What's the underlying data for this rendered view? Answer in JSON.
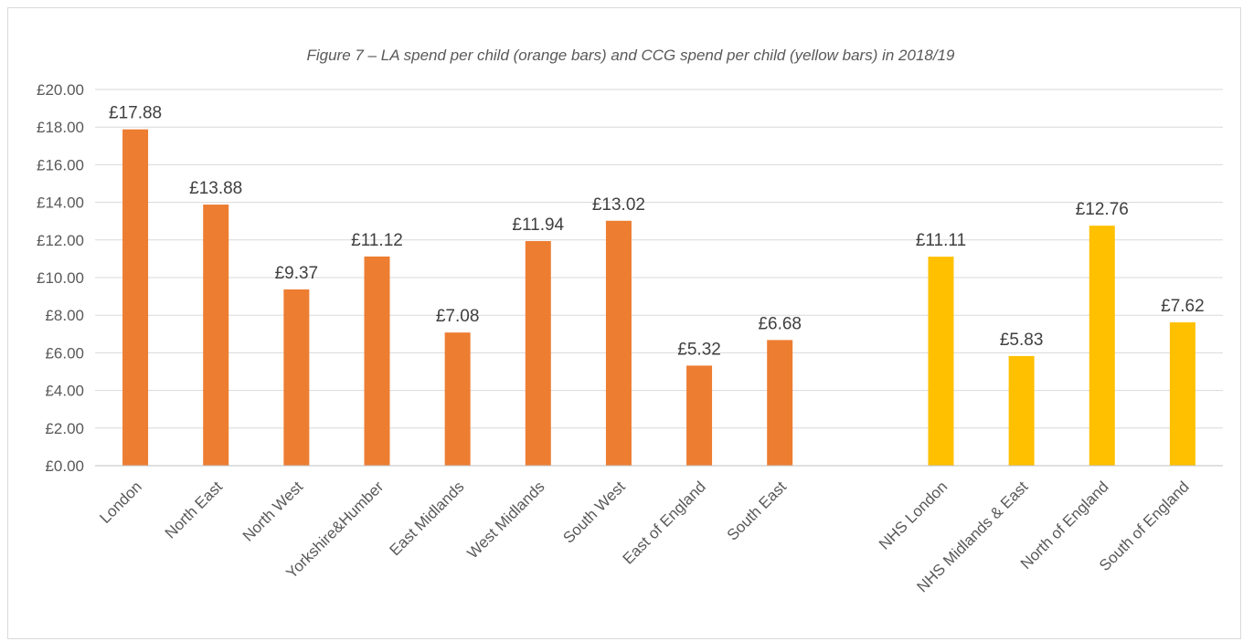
{
  "chart_data": {
    "type": "bar",
    "title": "Figure 7 – LA spend per child (orange bars) and CCG spend per child (yellow bars) in 2018/19",
    "xlabel": "",
    "ylabel": "",
    "ylim": [
      0,
      20
    ],
    "yticks": [
      "£0.00",
      "£2.00",
      "£4.00",
      "£6.00",
      "£8.00",
      "£10.00",
      "£12.00",
      "£14.00",
      "£16.00",
      "£18.00",
      "£20.00"
    ],
    "grid": true,
    "legend": "none",
    "categories": [
      "London",
      "North East",
      "North West",
      "Yorkshire&Humber",
      "East Midlands",
      "West Midlands",
      "South West",
      "East of England",
      "South East",
      "",
      "NHS London",
      "NHS Midlands & East",
      "North of England",
      "South of England"
    ],
    "values": [
      17.88,
      13.88,
      9.37,
      11.12,
      7.08,
      11.94,
      13.02,
      5.32,
      6.68,
      null,
      11.11,
      5.83,
      12.76,
      7.62
    ],
    "data_labels": [
      "£17.88",
      "£13.88",
      "£9.37",
      "£11.12",
      "£7.08",
      "£11.94",
      "£13.02",
      "£5.32",
      "£6.68",
      "",
      "£11.11",
      "£5.83",
      "£12.76",
      "£7.62"
    ],
    "colors": [
      "#ED7D31",
      "#ED7D31",
      "#ED7D31",
      "#ED7D31",
      "#ED7D31",
      "#ED7D31",
      "#ED7D31",
      "#ED7D31",
      "#ED7D31",
      "",
      "#FFC000",
      "#FFC000",
      "#FFC000",
      "#FFC000"
    ]
  }
}
